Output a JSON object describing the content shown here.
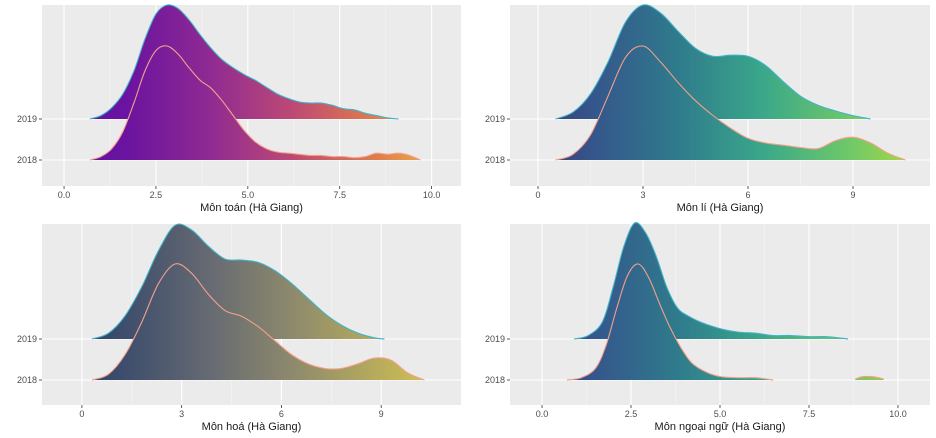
{
  "chart_data": [
    {
      "type": "area",
      "subtype": "ridgeline-density",
      "xlabel": "Môn toán (Hà Giang)",
      "x_ticks": [
        "0.0",
        "2.5",
        "5.0",
        "7.5",
        "10.0"
      ],
      "x_tick_values": [
        0,
        2.5,
        5,
        7.5,
        10
      ],
      "xlim": [
        -0.6,
        10.8
      ],
      "y_categories": [
        "2018",
        "2019"
      ],
      "grid": true,
      "colormap": "plasma",
      "colors": [
        "#5b0fa6",
        "#6a13a0",
        "#8f2a92",
        "#bd4a74",
        "#e07d4c",
        "#f2c44a"
      ],
      "series": [
        {
          "category": "2019",
          "outline_color": "#3fb3c7",
          "x": [
            0.7,
            1.0,
            1.3,
            1.6,
            1.9,
            2.2,
            2.5,
            2.8,
            3.1,
            3.4,
            3.7,
            4.0,
            4.3,
            4.6,
            4.9,
            5.2,
            5.5,
            5.8,
            6.1,
            6.4,
            6.7,
            7.0,
            7.3,
            7.6,
            7.9,
            8.2,
            8.5,
            8.8,
            9.1
          ],
          "density": [
            0.0,
            0.03,
            0.1,
            0.22,
            0.42,
            0.7,
            0.92,
            1.0,
            0.97,
            0.87,
            0.74,
            0.62,
            0.52,
            0.45,
            0.39,
            0.34,
            0.28,
            0.22,
            0.18,
            0.15,
            0.14,
            0.14,
            0.12,
            0.09,
            0.08,
            0.05,
            0.03,
            0.01,
            0.0
          ]
        },
        {
          "category": "2018",
          "outline_color": "#f4a08a",
          "x": [
            0.7,
            1.0,
            1.3,
            1.6,
            1.9,
            2.2,
            2.5,
            2.8,
            3.1,
            3.4,
            3.7,
            4.0,
            4.3,
            4.6,
            4.9,
            5.2,
            5.5,
            5.8,
            6.1,
            6.4,
            6.7,
            7.0,
            7.3,
            7.6,
            7.9,
            8.2,
            8.5,
            8.8,
            9.1,
            9.4,
            9.7
          ],
          "density": [
            0.0,
            0.03,
            0.1,
            0.25,
            0.5,
            0.78,
            0.96,
            1.0,
            0.93,
            0.81,
            0.7,
            0.63,
            0.52,
            0.39,
            0.26,
            0.16,
            0.1,
            0.07,
            0.06,
            0.05,
            0.04,
            0.04,
            0.03,
            0.03,
            0.02,
            0.03,
            0.06,
            0.05,
            0.06,
            0.04,
            0.0
          ]
        }
      ]
    },
    {
      "type": "area",
      "subtype": "ridgeline-density",
      "xlabel": "Môn lí (Hà Giang)",
      "x_ticks": [
        "0",
        "3",
        "6",
        "9"
      ],
      "x_tick_values": [
        0,
        3,
        6,
        9
      ],
      "xlim": [
        -0.8,
        11.2
      ],
      "y_categories": [
        "2018",
        "2019"
      ],
      "grid": true,
      "colormap": "viridis",
      "colors": [
        "#3d2f6b",
        "#35568c",
        "#2f7b8c",
        "#3aa78a",
        "#6cc76a",
        "#b6de3c"
      ],
      "series": [
        {
          "category": "2019",
          "outline_color": "#3fb3c7",
          "x": [
            0.5,
            1.0,
            1.5,
            2.0,
            2.5,
            3.0,
            3.5,
            4.0,
            4.5,
            5.0,
            5.5,
            6.0,
            6.5,
            7.0,
            7.5,
            8.0,
            8.5,
            9.0,
            9.5
          ],
          "density": [
            0.0,
            0.06,
            0.22,
            0.5,
            0.85,
            1.0,
            0.93,
            0.77,
            0.62,
            0.55,
            0.56,
            0.55,
            0.47,
            0.33,
            0.2,
            0.12,
            0.07,
            0.03,
            0.0
          ]
        },
        {
          "category": "2018",
          "outline_color": "#f4a08a",
          "x": [
            0.5,
            1.0,
            1.5,
            2.0,
            2.5,
            3.0,
            3.5,
            4.0,
            4.5,
            5.0,
            5.5,
            6.0,
            6.5,
            7.0,
            7.5,
            8.0,
            8.5,
            9.0,
            9.5,
            10.0,
            10.5
          ],
          "density": [
            0.0,
            0.05,
            0.22,
            0.56,
            0.9,
            1.0,
            0.86,
            0.68,
            0.52,
            0.39,
            0.28,
            0.19,
            0.15,
            0.13,
            0.11,
            0.1,
            0.17,
            0.2,
            0.15,
            0.06,
            0.0
          ]
        }
      ]
    },
    {
      "type": "area",
      "subtype": "ridgeline-density",
      "xlabel": "Môn hoá (Hà Giang)",
      "x_ticks": [
        "0",
        "3",
        "6",
        "9"
      ],
      "x_tick_values": [
        0,
        3,
        6,
        9
      ],
      "xlim": [
        -1.2,
        11.4
      ],
      "y_categories": [
        "2018",
        "2019"
      ],
      "grid": true,
      "colormap": "cividis",
      "colors": [
        "#1e3a66",
        "#3e4e6c",
        "#666a72",
        "#8e8a6c",
        "#b7ab5c",
        "#e2d04a"
      ],
      "series": [
        {
          "category": "2019",
          "outline_color": "#3fb3c7",
          "x": [
            0.3,
            0.8,
            1.3,
            1.8,
            2.3,
            2.8,
            3.3,
            3.8,
            4.3,
            4.8,
            5.3,
            5.8,
            6.3,
            6.8,
            7.3,
            7.8,
            8.3,
            8.8,
            9.1
          ],
          "density": [
            0.0,
            0.05,
            0.2,
            0.45,
            0.76,
            0.98,
            0.94,
            0.8,
            0.69,
            0.68,
            0.66,
            0.59,
            0.48,
            0.35,
            0.22,
            0.12,
            0.05,
            0.01,
            0.0
          ]
        },
        {
          "category": "2018",
          "outline_color": "#f4a08a",
          "x": [
            0.3,
            0.8,
            1.3,
            1.8,
            2.3,
            2.8,
            3.3,
            3.8,
            4.3,
            4.8,
            5.3,
            5.8,
            6.3,
            6.8,
            7.3,
            7.8,
            8.3,
            8.8,
            9.3,
            9.8,
            10.3
          ],
          "density": [
            0.0,
            0.05,
            0.22,
            0.5,
            0.83,
            1.0,
            0.92,
            0.74,
            0.6,
            0.55,
            0.46,
            0.34,
            0.22,
            0.14,
            0.1,
            0.1,
            0.14,
            0.19,
            0.17,
            0.06,
            0.0
          ]
        }
      ]
    },
    {
      "type": "area",
      "subtype": "ridgeline-density",
      "xlabel": "Môn ngoại ngữ (Hà Giang)",
      "x_ticks": [
        "0.0",
        "2.5",
        "5.0",
        "7.5",
        "10.0"
      ],
      "x_tick_values": [
        0,
        2.5,
        5,
        7.5,
        10
      ],
      "xlim": [
        -0.9,
        10.9
      ],
      "y_categories": [
        "2018",
        "2019"
      ],
      "grid": true,
      "colormap": "viridis",
      "colors": [
        "#3d2f6b",
        "#35568c",
        "#2f7b8c",
        "#3aa78a",
        "#6cc76a",
        "#d8c43a"
      ],
      "series": [
        {
          "category": "2019",
          "outline_color": "#3fb3c7",
          "x": [
            0.9,
            1.3,
            1.7,
            2.0,
            2.3,
            2.6,
            2.9,
            3.2,
            3.5,
            3.8,
            4.1,
            4.5,
            5.0,
            5.5,
            6.0,
            6.5,
            7.0,
            7.5,
            8.0,
            8.6
          ],
          "density": [
            0.0,
            0.03,
            0.15,
            0.45,
            0.8,
            1.0,
            0.92,
            0.72,
            0.45,
            0.27,
            0.2,
            0.14,
            0.09,
            0.06,
            0.05,
            0.03,
            0.03,
            0.02,
            0.02,
            0.0
          ]
        },
        {
          "category": "2018",
          "outline_color": "#f4a08a",
          "x": [
            0.7,
            1.1,
            1.5,
            1.8,
            2.1,
            2.4,
            2.7,
            3.0,
            3.3,
            3.6,
            3.9,
            4.2,
            4.6,
            5.0,
            5.5,
            6.0,
            6.5
          ],
          "density": [
            0.0,
            0.02,
            0.1,
            0.3,
            0.62,
            0.9,
            1.0,
            0.88,
            0.66,
            0.45,
            0.28,
            0.15,
            0.07,
            0.03,
            0.02,
            0.02,
            0.0
          ],
          "extra_segment": {
            "x": [
              8.8,
              9.0,
              9.3,
              9.6
            ],
            "density": [
              0.0,
              0.02,
              0.02,
              0.0
            ]
          }
        }
      ]
    }
  ]
}
